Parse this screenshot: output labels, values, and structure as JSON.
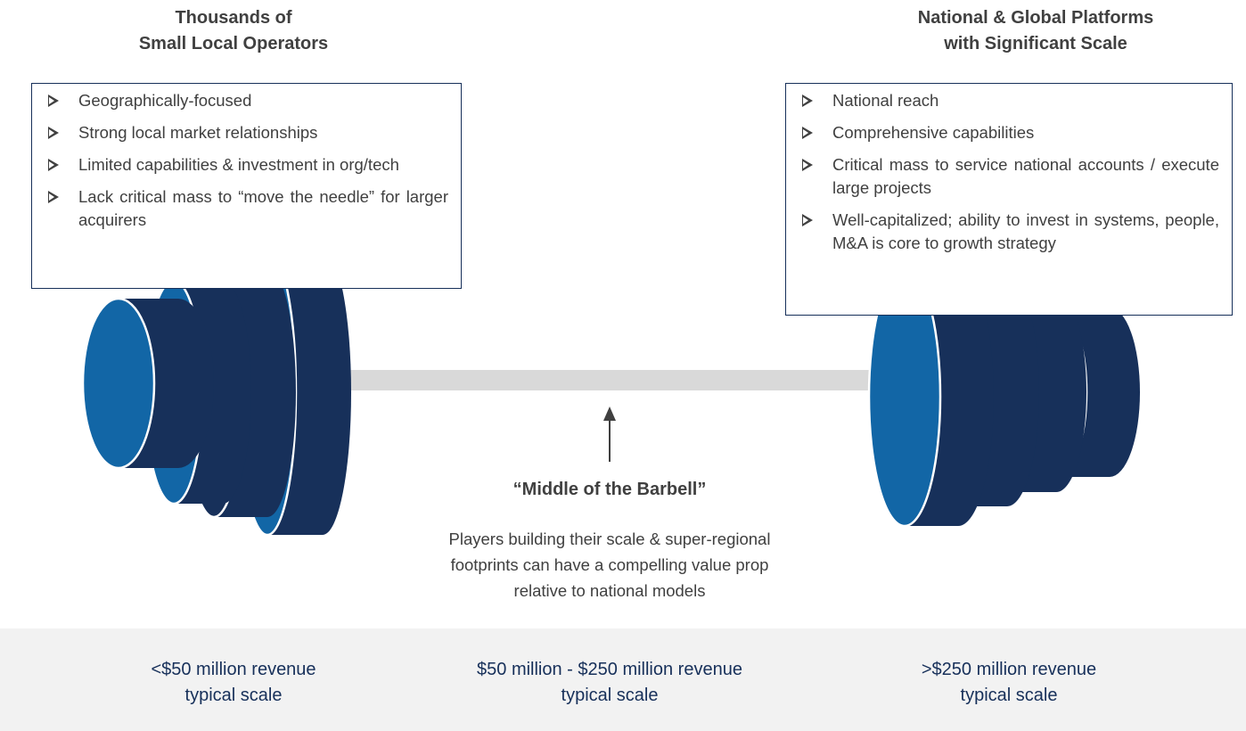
{
  "left": {
    "title_lines": [
      "Thousands of",
      "Small Local Operators"
    ],
    "bullets": [
      "Geographically-focused",
      "Strong local market relationships",
      "Limited capabilities & investment in org/tech",
      "Lack critical mass to “move the needle” for larger acquirers"
    ]
  },
  "right": {
    "title_lines": [
      "National & Global Platforms",
      "with Significant Scale"
    ],
    "bullets": [
      "National reach",
      "Comprehensive capabilities",
      "Critical mass to service national accounts / execute large projects",
      "Well-capitalized; ability to invest in systems, people, M&A is core to growth strategy"
    ]
  },
  "middle": {
    "title": "“Middle of the Barbell”",
    "description_lines": [
      "Players building their scale & super-regional",
      "footprints can have a compelling value prop",
      "relative to national models"
    ]
  },
  "footer": {
    "columns": [
      [
        "<$50 million revenue",
        "typical scale"
      ],
      [
        "$50 million - $250 million revenue",
        "typical scale"
      ],
      [
        ">$250 million revenue",
        "typical scale"
      ]
    ]
  }
}
